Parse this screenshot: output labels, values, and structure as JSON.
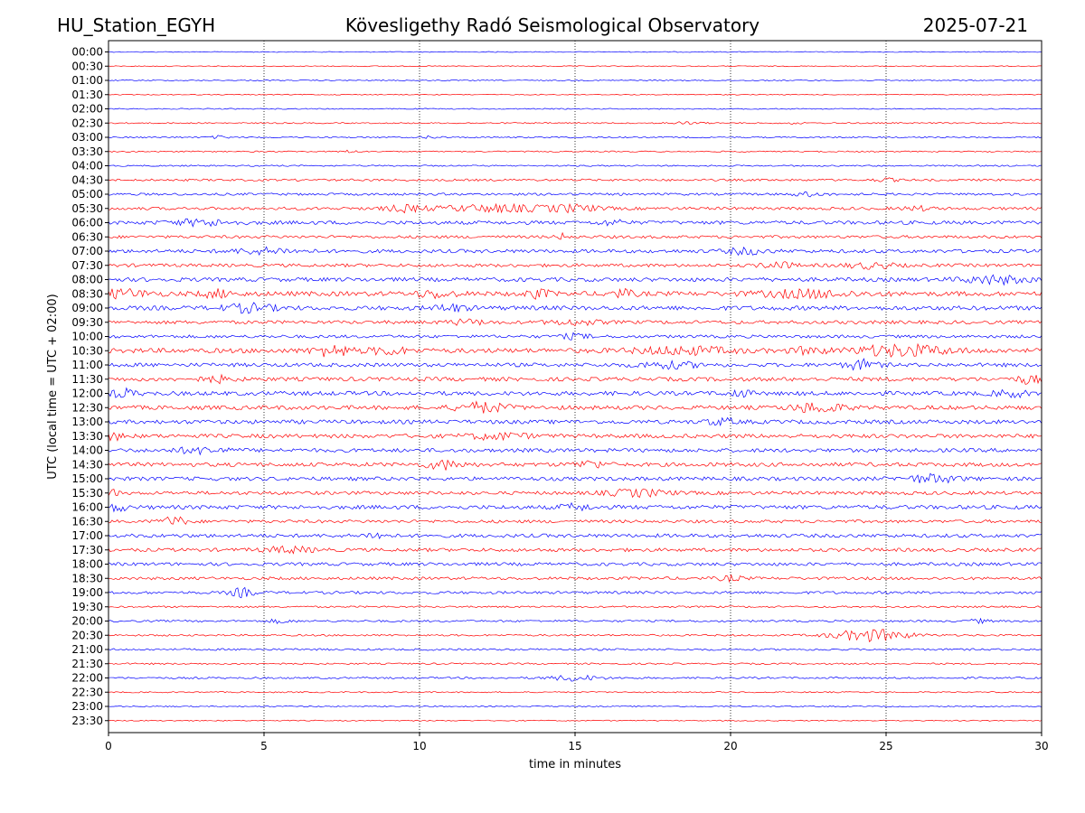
{
  "header": {
    "station": "HU_Station_EGYH",
    "observatory": "Kövesligethy Radó Seismological Observatory",
    "date": "2025-07-21"
  },
  "chart_data": {
    "type": "line",
    "title": "Kövesligethy Radó Seismological Observatory",
    "xlabel": "time in minutes",
    "ylabel": "UTC (local time = UTC + 02:00)",
    "xlim": [
      0,
      30
    ],
    "xticks": [
      "0",
      "5",
      "10",
      "15",
      "20",
      "25",
      "30"
    ],
    "x_grid_minutes": [
      5,
      10,
      15,
      20,
      25
    ],
    "grid": "vertical dotted",
    "colors": {
      "even_rows": "#0000ff",
      "odd_rows": "#ff0000",
      "grid": "#000000"
    },
    "series": [
      {
        "label": "00:00",
        "amplitude": 0.5
      },
      {
        "label": "00:30",
        "amplitude": 0.5
      },
      {
        "label": "01:00",
        "amplitude": 0.6
      },
      {
        "label": "01:30",
        "amplitude": 0.5
      },
      {
        "label": "02:00",
        "amplitude": 0.6
      },
      {
        "label": "02:30",
        "amplitude": 0.7,
        "bursts": [
          {
            "t": 18.5,
            "a": 1.2,
            "w": 0.6
          },
          {
            "t": 22.0,
            "a": 1.0,
            "w": 0.3
          }
        ]
      },
      {
        "label": "03:00",
        "amplitude": 0.8,
        "bursts": [
          {
            "t": 3.6,
            "a": 1.5,
            "w": 0.3
          },
          {
            "t": 10.4,
            "a": 1.4,
            "w": 0.3
          }
        ]
      },
      {
        "label": "03:30",
        "amplitude": 0.7,
        "bursts": [
          {
            "t": 7.8,
            "a": 1.2,
            "w": 0.3
          }
        ]
      },
      {
        "label": "04:00",
        "amplitude": 0.8
      },
      {
        "label": "04:30",
        "amplitude": 1.2,
        "bursts": [
          {
            "t": 25.0,
            "a": 1.5,
            "w": 0.4
          }
        ]
      },
      {
        "label": "05:00",
        "amplitude": 1.3,
        "bursts": [
          {
            "t": 22.5,
            "a": 1.8,
            "w": 0.5
          }
        ]
      },
      {
        "label": "05:30",
        "amplitude": 1.6,
        "bursts": [
          {
            "t": 9.5,
            "a": 3.0,
            "w": 0.6
          },
          {
            "t": 12.5,
            "a": 3.5,
            "w": 2.0
          },
          {
            "t": 15.0,
            "a": 3.0,
            "w": 0.8
          },
          {
            "t": 26.0,
            "a": 2.2,
            "w": 0.4
          }
        ]
      },
      {
        "label": "06:00",
        "amplitude": 2.0,
        "bursts": [
          {
            "t": 3.0,
            "a": 3.0,
            "w": 1.0
          },
          {
            "t": 16.2,
            "a": 2.5,
            "w": 0.4
          }
        ]
      },
      {
        "label": "06:30",
        "amplitude": 1.6,
        "bursts": [
          {
            "t": 14.6,
            "a": 3.0,
            "w": 0.2
          }
        ]
      },
      {
        "label": "07:00",
        "amplitude": 2.0,
        "bursts": [
          {
            "t": 5.0,
            "a": 2.8,
            "w": 1.0
          },
          {
            "t": 20.5,
            "a": 3.0,
            "w": 0.6
          }
        ]
      },
      {
        "label": "07:30",
        "amplitude": 1.8,
        "bursts": [
          {
            "t": 21.5,
            "a": 3.5,
            "w": 0.5
          },
          {
            "t": 24.5,
            "a": 2.8,
            "w": 0.8
          }
        ]
      },
      {
        "label": "08:00",
        "amplitude": 2.2,
        "bursts": [
          {
            "t": 28.5,
            "a": 4.0,
            "w": 1.0
          }
        ]
      },
      {
        "label": "08:30",
        "amplitude": 2.6,
        "bursts": [
          {
            "t": 0.5,
            "a": 4.0,
            "w": 0.8
          },
          {
            "t": 3.5,
            "a": 3.5,
            "w": 0.5
          },
          {
            "t": 10.5,
            "a": 3.5,
            "w": 0.6
          },
          {
            "t": 13.8,
            "a": 4.0,
            "w": 0.4
          },
          {
            "t": 16.5,
            "a": 3.5,
            "w": 0.4
          },
          {
            "t": 22.5,
            "a": 3.5,
            "w": 1.5
          }
        ]
      },
      {
        "label": "09:00",
        "amplitude": 2.4,
        "bursts": [
          {
            "t": 4.5,
            "a": 4.0,
            "w": 0.8
          },
          {
            "t": 11.0,
            "a": 3.5,
            "w": 0.5
          }
        ]
      },
      {
        "label": "09:30",
        "amplitude": 1.9,
        "bursts": [
          {
            "t": 11.5,
            "a": 2.5,
            "w": 0.6
          },
          {
            "t": 15.0,
            "a": 2.5,
            "w": 0.8
          }
        ]
      },
      {
        "label": "10:00",
        "amplitude": 1.7,
        "bursts": [
          {
            "t": 15.0,
            "a": 2.5,
            "w": 0.5
          }
        ]
      },
      {
        "label": "10:30",
        "amplitude": 2.6,
        "bursts": [
          {
            "t": 7.2,
            "a": 5.5,
            "w": 0.6
          },
          {
            "t": 9.0,
            "a": 3.5,
            "w": 0.6
          },
          {
            "t": 18.5,
            "a": 3.5,
            "w": 1.5
          },
          {
            "t": 22.5,
            "a": 3.0,
            "w": 0.5
          },
          {
            "t": 25.5,
            "a": 5.5,
            "w": 1.5
          }
        ]
      },
      {
        "label": "11:00",
        "amplitude": 2.1,
        "bursts": [
          {
            "t": 18.0,
            "a": 3.0,
            "w": 1.0
          },
          {
            "t": 24.2,
            "a": 5.0,
            "w": 0.5
          }
        ]
      },
      {
        "label": "11:30",
        "amplitude": 2.2,
        "bursts": [
          {
            "t": 3.5,
            "a": 3.0,
            "w": 0.5
          },
          {
            "t": 29.6,
            "a": 4.0,
            "w": 0.4
          }
        ]
      },
      {
        "label": "12:00",
        "amplitude": 2.3,
        "bursts": [
          {
            "t": 0.5,
            "a": 4.0,
            "w": 0.4
          },
          {
            "t": 20.3,
            "a": 4.0,
            "w": 0.3
          },
          {
            "t": 29.0,
            "a": 3.5,
            "w": 0.5
          }
        ]
      },
      {
        "label": "12:30",
        "amplitude": 2.3,
        "bursts": [
          {
            "t": 12.0,
            "a": 5.0,
            "w": 0.8
          },
          {
            "t": 22.8,
            "a": 5.0,
            "w": 0.8
          }
        ]
      },
      {
        "label": "13:00",
        "amplitude": 2.2,
        "bursts": [
          {
            "t": 19.7,
            "a": 3.0,
            "w": 0.5
          }
        ]
      },
      {
        "label": "13:30",
        "amplitude": 2.2,
        "bursts": [
          {
            "t": 0.2,
            "a": 3.5,
            "w": 0.3
          },
          {
            "t": 12.5,
            "a": 3.0,
            "w": 1.0
          }
        ]
      },
      {
        "label": "14:00",
        "amplitude": 2.1,
        "bursts": [
          {
            "t": 3.0,
            "a": 3.0,
            "w": 0.8
          }
        ]
      },
      {
        "label": "14:30",
        "amplitude": 2.2,
        "bursts": [
          {
            "t": 10.8,
            "a": 4.5,
            "w": 0.6
          },
          {
            "t": 15.5,
            "a": 3.5,
            "w": 0.5
          }
        ]
      },
      {
        "label": "15:00",
        "amplitude": 2.1,
        "bursts": [
          {
            "t": 26.5,
            "a": 4.0,
            "w": 0.8
          }
        ]
      },
      {
        "label": "15:30",
        "amplitude": 1.9,
        "bursts": [
          {
            "t": 0.1,
            "a": 3.5,
            "w": 0.2
          },
          {
            "t": 17.0,
            "a": 3.5,
            "w": 1.0
          }
        ]
      },
      {
        "label": "16:00",
        "amplitude": 2.2,
        "bursts": [
          {
            "t": 0.3,
            "a": 3.5,
            "w": 0.3
          },
          {
            "t": 15.0,
            "a": 3.0,
            "w": 0.5
          }
        ]
      },
      {
        "label": "16:30",
        "amplitude": 1.7,
        "bursts": [
          {
            "t": 2.1,
            "a": 5.0,
            "w": 0.4
          }
        ]
      },
      {
        "label": "17:00",
        "amplitude": 2.0,
        "bursts": [
          {
            "t": 8.6,
            "a": 3.5,
            "w": 0.3
          }
        ]
      },
      {
        "label": "17:30",
        "amplitude": 1.9,
        "bursts": [
          {
            "t": 5.8,
            "a": 3.0,
            "w": 0.8
          }
        ]
      },
      {
        "label": "18:00",
        "amplitude": 1.8
      },
      {
        "label": "18:30",
        "amplitude": 1.6,
        "bursts": [
          {
            "t": 20.0,
            "a": 2.5,
            "w": 0.4
          }
        ]
      },
      {
        "label": "19:00",
        "amplitude": 1.5,
        "bursts": [
          {
            "t": 4.3,
            "a": 4.5,
            "w": 0.4
          }
        ]
      },
      {
        "label": "19:30",
        "amplitude": 1.0
      },
      {
        "label": "20:00",
        "amplitude": 1.1,
        "bursts": [
          {
            "t": 5.5,
            "a": 1.8,
            "w": 0.4
          },
          {
            "t": 28.0,
            "a": 2.0,
            "w": 0.3
          }
        ]
      },
      {
        "label": "20:30",
        "amplitude": 1.0,
        "bursts": [
          {
            "t": 24.5,
            "a": 6.5,
            "w": 1.2
          }
        ]
      },
      {
        "label": "21:00",
        "amplitude": 1.1
      },
      {
        "label": "21:30",
        "amplitude": 0.9
      },
      {
        "label": "22:00",
        "amplitude": 1.0,
        "bursts": [
          {
            "t": 15.0,
            "a": 3.0,
            "w": 0.8
          }
        ]
      },
      {
        "label": "22:30",
        "amplitude": 0.7
      },
      {
        "label": "23:00",
        "amplitude": 0.6
      },
      {
        "label": "23:30",
        "amplitude": 0.6
      }
    ]
  }
}
